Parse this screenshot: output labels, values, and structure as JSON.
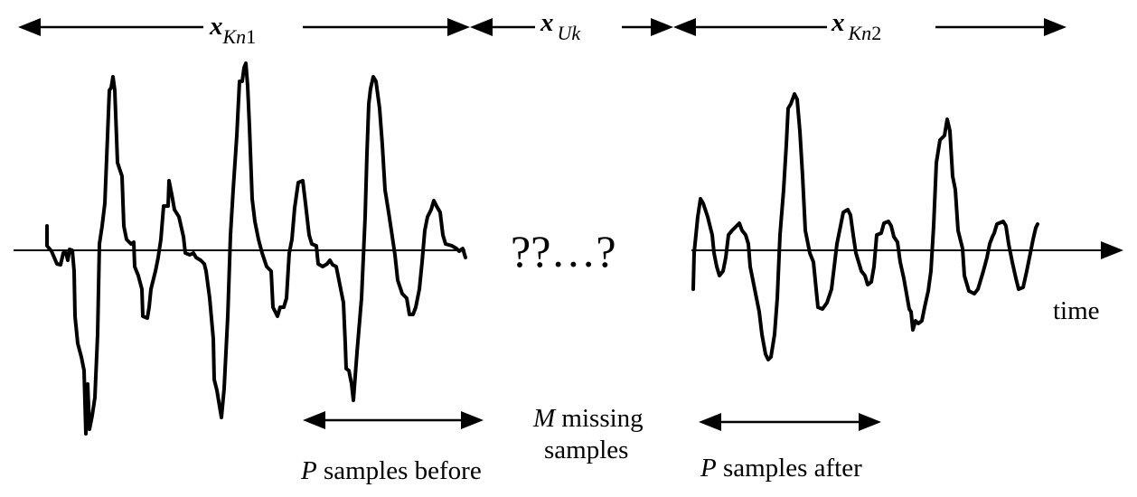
{
  "segments": {
    "known_before": {
      "var": "x",
      "sub": "Kn",
      "num": "1"
    },
    "unknown": {
      "var": "x",
      "sub": "Uk"
    },
    "known_after": {
      "var": "x",
      "sub": "Kn",
      "num": "2"
    }
  },
  "missing_marker": "??…?",
  "axis_label": "time",
  "annotations": {
    "missing": {
      "italic": "M",
      "rest_line1": " missing",
      "line2": "samples"
    },
    "before": {
      "italic": "P",
      "rest": " samples before"
    },
    "after": {
      "italic": "P",
      "rest": " samples after"
    }
  }
}
